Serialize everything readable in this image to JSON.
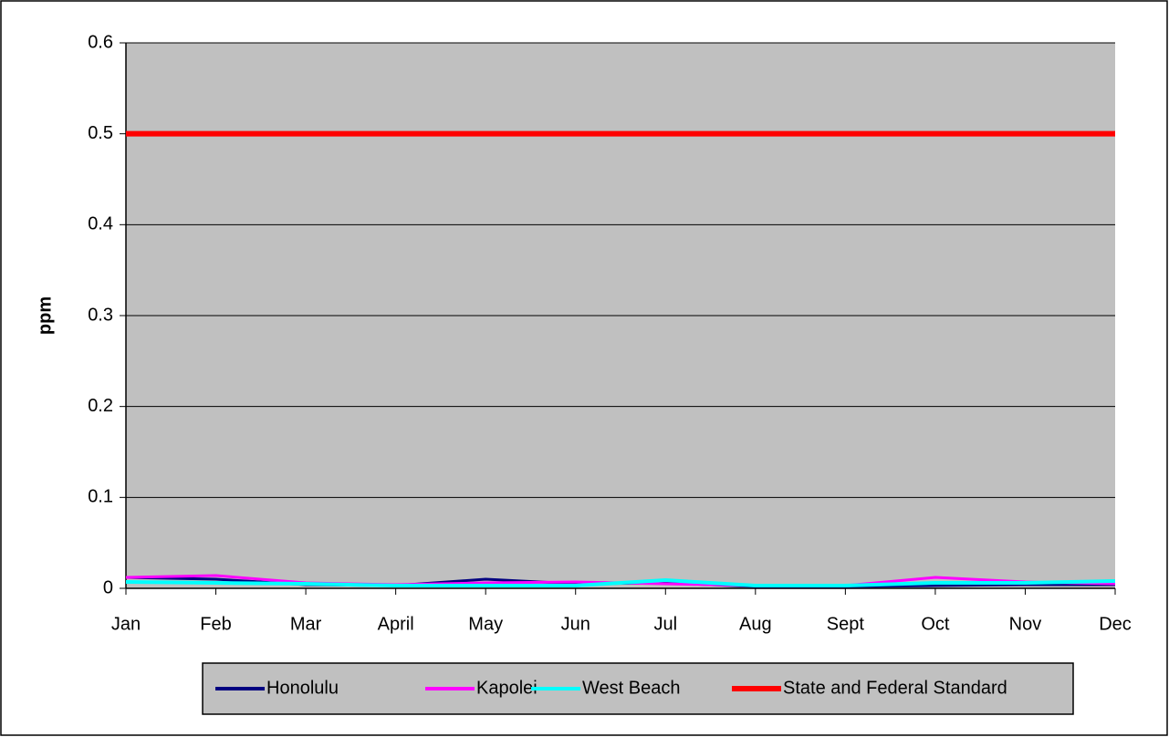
{
  "chart_data": {
    "type": "line",
    "y_label": "ppm",
    "categories": [
      "Jan",
      "Feb",
      "Mar",
      "April",
      "May",
      "Jun",
      "Jul",
      "Aug",
      "Sept",
      "Oct",
      "Nov",
      "Dec"
    ],
    "series": [
      {
        "name": "Honolulu",
        "color": "#000080",
        "values": [
          0.012,
          0.01,
          0.004,
          0.003,
          0.01,
          0.005,
          0.006,
          0.002,
          0.002,
          0.003,
          0.004,
          0.004
        ]
      },
      {
        "name": "Kapolei",
        "color": "#ff00ff",
        "values": [
          0.012,
          0.014,
          0.006,
          0.004,
          0.006,
          0.007,
          0.005,
          0.003,
          0.003,
          0.012,
          0.007,
          0.005
        ]
      },
      {
        "name": "West Beach",
        "color": "#00ffff",
        "values": [
          0.007,
          0.006,
          0.005,
          0.003,
          0.003,
          0.003,
          0.009,
          0.003,
          0.003,
          0.006,
          0.006,
          0.008
        ]
      },
      {
        "name": "State and Federal Standard",
        "color": "#ff0000",
        "values": [
          0.5,
          0.5,
          0.5,
          0.5,
          0.5,
          0.5,
          0.5,
          0.5,
          0.5,
          0.5,
          0.5,
          0.5
        ]
      }
    ],
    "ylim": [
      0,
      0.6
    ],
    "yticks": [
      0,
      0.1,
      0.2,
      0.3,
      0.4,
      0.5,
      0.6
    ],
    "grid": true,
    "legend": "bottom"
  }
}
